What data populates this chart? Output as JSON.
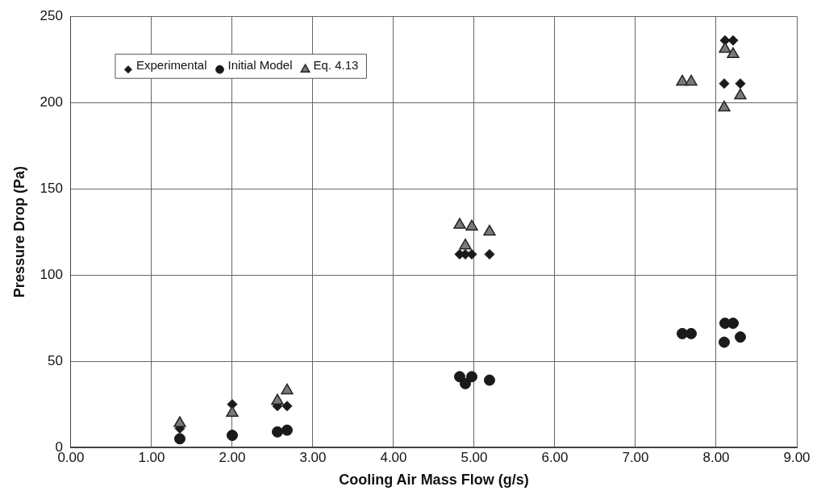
{
  "chart_data": {
    "type": "scatter",
    "xlabel": "Cooling Air Mass Flow (g/s)",
    "ylabel": "Pressure Drop (Pa)",
    "series": [
      {
        "name": "Experimental",
        "color": "#1a1a1a",
        "marker": "diamond",
        "x": [
          1.35,
          2.0,
          2.56,
          2.68,
          4.82,
          4.89,
          4.97,
          5.19,
          7.58,
          7.69,
          8.1,
          8.3,
          8.11,
          8.21
        ],
        "values": [
          11,
          25,
          24,
          24,
          112,
          112,
          112,
          112,
          null,
          null,
          211,
          211,
          236,
          236
        ]
      },
      {
        "name": "Initial Model",
        "color": "#1a1a1a",
        "marker": "circle",
        "x": [
          1.35,
          2.0,
          2.56,
          2.68,
          4.82,
          4.89,
          4.97,
          5.19,
          7.58,
          7.69,
          8.1,
          8.3,
          8.11,
          8.21
        ],
        "values": [
          5,
          7,
          9,
          10,
          41,
          37,
          41,
          39,
          66,
          66,
          61,
          64,
          72,
          72
        ]
      },
      {
        "name": "Eq. 4.13",
        "color": "#7a7a7a",
        "marker": "triangle",
        "x": [
          1.35,
          2.0,
          2.56,
          2.68,
          4.82,
          4.89,
          4.97,
          5.19,
          7.58,
          7.69,
          8.1,
          8.3,
          8.11,
          8.21
        ],
        "values": [
          14,
          20,
          27,
          33,
          129,
          117,
          128,
          125,
          212,
          212,
          197,
          204,
          231,
          228
        ]
      }
    ],
    "xlim": [
      0,
      9
    ],
    "xticks": [
      {
        "value": 0,
        "label": "0.00"
      },
      {
        "value": 1,
        "label": "1.00"
      },
      {
        "value": 2,
        "label": "2.00"
      },
      {
        "value": 3,
        "label": "3.00"
      },
      {
        "value": 4,
        "label": "4.00"
      },
      {
        "value": 5,
        "label": "5.00"
      },
      {
        "value": 6,
        "label": "6.00"
      },
      {
        "value": 7,
        "label": "7.00"
      },
      {
        "value": 8,
        "label": "8.00"
      },
      {
        "value": 9,
        "label": "9.00"
      }
    ],
    "ylim": [
      0,
      250
    ],
    "yticks": [
      0,
      50,
      100,
      150,
      200,
      250
    ],
    "grid": true,
    "legend": "top left"
  }
}
